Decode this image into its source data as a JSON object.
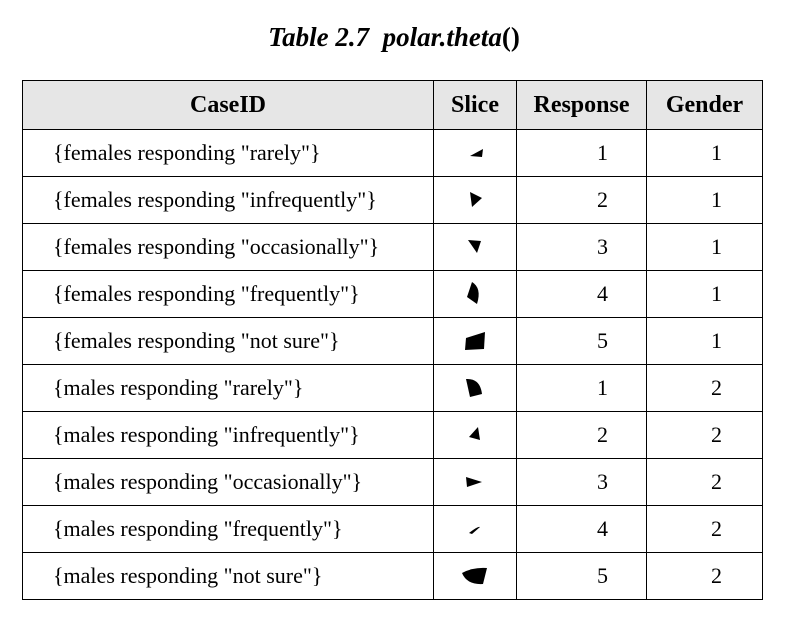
{
  "title": {
    "label": "Table 2.7",
    "func": "polar.theta",
    "parens": "()"
  },
  "table": {
    "headers": [
      "CaseID",
      "Slice",
      "Response",
      "Gender"
    ],
    "rows": [
      {
        "case": "{females responding \"rarely\"}",
        "slice_icon": "wedge-slice-icon",
        "response": "1",
        "gender": "1"
      },
      {
        "case": "{females responding \"infrequently\"}",
        "slice_icon": "wedge-slice-icon",
        "response": "2",
        "gender": "1"
      },
      {
        "case": "{females responding \"occasionally\"}",
        "slice_icon": "wedge-slice-icon",
        "response": "3",
        "gender": "1"
      },
      {
        "case": "{females responding \"frequently\"}",
        "slice_icon": "wedge-slice-icon",
        "response": "4",
        "gender": "1"
      },
      {
        "case": "{females responding \"not sure\"}",
        "slice_icon": "wedge-slice-icon",
        "response": "5",
        "gender": "1"
      },
      {
        "case": "{males responding \"rarely\"}",
        "slice_icon": "wedge-slice-icon",
        "response": "1",
        "gender": "2"
      },
      {
        "case": "{males responding \"infrequently\"}",
        "slice_icon": "wedge-slice-icon",
        "response": "2",
        "gender": "2"
      },
      {
        "case": "{males responding \"occasionally\"}",
        "slice_icon": "wedge-slice-icon",
        "response": "3",
        "gender": "2"
      },
      {
        "case": "{males responding \"frequently\"}",
        "slice_icon": "wedge-slice-icon",
        "response": "4",
        "gender": "2"
      },
      {
        "case": "{males responding \"not sure\"}",
        "slice_icon": "wedge-slice-icon",
        "response": "5",
        "gender": "2"
      }
    ]
  }
}
